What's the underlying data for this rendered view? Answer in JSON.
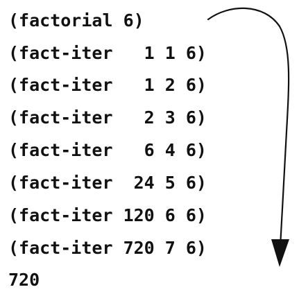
{
  "trace": {
    "lines": [
      "(factorial 6)",
      "(fact-iter   1 1 6)",
      "(fact-iter   1 2 6)",
      "(fact-iter   2 3 6)",
      "(fact-iter   6 4 6)",
      "(fact-iter  24 5 6)",
      "(fact-iter 120 6 6)",
      "(fact-iter 720 7 6)",
      "720"
    ]
  },
  "colors": {
    "text": "#111111",
    "arrow": "#111111",
    "background": "#ffffff"
  }
}
